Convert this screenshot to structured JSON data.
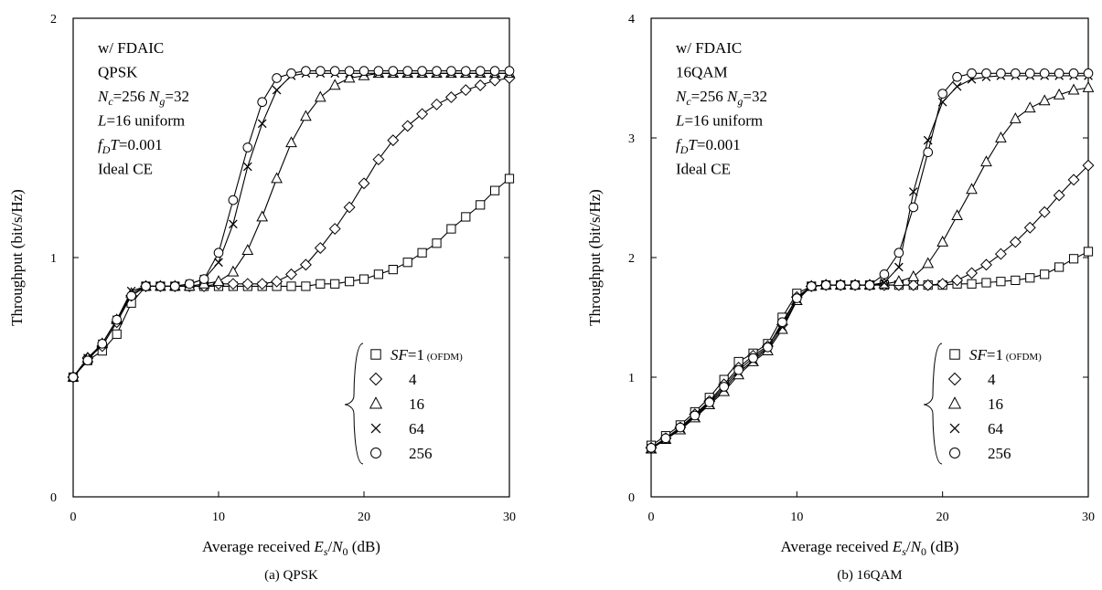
{
  "chart_data": [
    {
      "type": "line",
      "caption": "(a) QPSK",
      "xlabel_prefix": "Average received ",
      "xlabel_var": "E",
      "xlabel_var_sub": "s",
      "xlabel_slash": "/",
      "xlabel_var2": "N",
      "xlabel_var2_sub": "0",
      "xlabel_unit": " (dB)",
      "ylabel": "Throughput (bit/s/Hz)",
      "xlim": [
        0,
        30
      ],
      "ylim": [
        0,
        2
      ],
      "xticks": [
        "0",
        "10",
        "20",
        "30"
      ],
      "yticks": [
        "0",
        "1",
        "2"
      ],
      "annotations": [
        {
          "pre": "w/ FDAIC",
          "it": "",
          "sub": "",
          "post": ""
        },
        {
          "pre": "QPSK",
          "it": "",
          "sub": "",
          "post": ""
        },
        {
          "pre": "",
          "it": "N",
          "sub": "c",
          "post": "=256 ",
          "it2": "N",
          "sub2": "g",
          "post2": "=32"
        },
        {
          "pre": "",
          "it": "L",
          "sub": "",
          "post": "=16 uniform"
        },
        {
          "pre": "",
          "it": "f",
          "sub": "D",
          "post": "",
          "it2": "T",
          "sub2": "",
          "post2": "=0.001"
        },
        {
          "pre": "Ideal CE",
          "it": "",
          "sub": "",
          "post": ""
        }
      ],
      "series": [
        {
          "name": "SF=1 (OFDM)",
          "marker": "square",
          "x": [
            0,
            1,
            2,
            3,
            4,
            5,
            6,
            7,
            8,
            9,
            10,
            11,
            12,
            13,
            14,
            15,
            16,
            17,
            18,
            19,
            20,
            21,
            22,
            23,
            24,
            25,
            26,
            27,
            28,
            29,
            30
          ],
          "y": [
            0.5,
            0.57,
            0.61,
            0.68,
            0.81,
            0.88,
            0.88,
            0.88,
            0.88,
            0.88,
            0.88,
            0.88,
            0.88,
            0.88,
            0.88,
            0.88,
            0.88,
            0.89,
            0.89,
            0.9,
            0.91,
            0.93,
            0.95,
            0.98,
            1.02,
            1.06,
            1.12,
            1.17,
            1.22,
            1.28,
            1.33
          ]
        },
        {
          "name": "4",
          "marker": "diamond",
          "x": [
            0,
            1,
            2,
            3,
            4,
            5,
            6,
            7,
            8,
            9,
            10,
            11,
            12,
            13,
            14,
            15,
            16,
            17,
            18,
            19,
            20,
            21,
            22,
            23,
            24,
            25,
            26,
            27,
            28,
            29,
            30
          ],
          "y": [
            0.5,
            0.58,
            0.63,
            0.73,
            0.84,
            0.88,
            0.88,
            0.88,
            0.88,
            0.88,
            0.89,
            0.89,
            0.89,
            0.89,
            0.9,
            0.93,
            0.97,
            1.04,
            1.12,
            1.21,
            1.31,
            1.41,
            1.49,
            1.55,
            1.6,
            1.64,
            1.67,
            1.7,
            1.72,
            1.74,
            1.75
          ]
        },
        {
          "name": "16",
          "marker": "triangle",
          "x": [
            0,
            1,
            2,
            3,
            4,
            5,
            6,
            7,
            8,
            9,
            10,
            11,
            12,
            13,
            14,
            15,
            16,
            17,
            18,
            19,
            20,
            21,
            22,
            23,
            24,
            25,
            26,
            27,
            28,
            29,
            30
          ],
          "y": [
            0.5,
            0.58,
            0.64,
            0.74,
            0.85,
            0.88,
            0.88,
            0.88,
            0.88,
            0.89,
            0.9,
            0.94,
            1.03,
            1.17,
            1.33,
            1.48,
            1.59,
            1.67,
            1.72,
            1.75,
            1.76,
            1.77,
            1.77,
            1.77,
            1.77,
            1.77,
            1.77,
            1.77,
            1.77,
            1.77,
            1.77
          ]
        },
        {
          "name": "64",
          "marker": "cross",
          "x": [
            0,
            1,
            2,
            3,
            4,
            5,
            6,
            7,
            8,
            9,
            10,
            11,
            12,
            13,
            14,
            15,
            16,
            17,
            18,
            19,
            20,
            21,
            22,
            23,
            24,
            25,
            26,
            27,
            28,
            29,
            30
          ],
          "y": [
            0.5,
            0.58,
            0.64,
            0.74,
            0.86,
            0.88,
            0.88,
            0.88,
            0.89,
            0.91,
            0.98,
            1.14,
            1.38,
            1.56,
            1.7,
            1.76,
            1.77,
            1.77,
            1.77,
            1.77,
            1.77,
            1.77,
            1.77,
            1.77,
            1.77,
            1.77,
            1.77,
            1.77,
            1.77,
            1.77,
            1.77
          ]
        },
        {
          "name": "256",
          "marker": "circle",
          "x": [
            0,
            1,
            2,
            3,
            4,
            5,
            6,
            7,
            8,
            9,
            10,
            11,
            12,
            13,
            14,
            15,
            16,
            17,
            18,
            19,
            20,
            21,
            22,
            23,
            24,
            25,
            26,
            27,
            28,
            29,
            30
          ],
          "y": [
            0.5,
            0.57,
            0.64,
            0.74,
            0.84,
            0.88,
            0.88,
            0.88,
            0.89,
            0.91,
            1.02,
            1.24,
            1.46,
            1.65,
            1.75,
            1.77,
            1.78,
            1.78,
            1.78,
            1.78,
            1.78,
            1.78,
            1.78,
            1.78,
            1.78,
            1.78,
            1.78,
            1.78,
            1.78,
            1.78,
            1.78
          ]
        }
      ],
      "legend": {
        "position": "bottom-right",
        "sf_label": "SF",
        "sf_value": "=1",
        "ofdm": "(OFDM)",
        "others": [
          "4",
          "16",
          "64",
          "256"
        ]
      }
    },
    {
      "type": "line",
      "caption": "(b) 16QAM",
      "xlabel_prefix": "Average received ",
      "xlabel_var": "E",
      "xlabel_var_sub": "s",
      "xlabel_slash": "/",
      "xlabel_var2": "N",
      "xlabel_var2_sub": "0",
      "xlabel_unit": " (dB)",
      "ylabel": "Throughput (bit/s/Hz)",
      "xlim": [
        0,
        30
      ],
      "ylim": [
        0,
        4
      ],
      "xticks": [
        "0",
        "10",
        "20",
        "30"
      ],
      "yticks": [
        "0",
        "1",
        "2",
        "3",
        "4"
      ],
      "annotations": [
        {
          "pre": "w/ FDAIC",
          "it": "",
          "sub": "",
          "post": ""
        },
        {
          "pre": "16QAM",
          "it": "",
          "sub": "",
          "post": ""
        },
        {
          "pre": "",
          "it": "N",
          "sub": "c",
          "post": "=256 ",
          "it2": "N",
          "sub2": "g",
          "post2": "=32"
        },
        {
          "pre": "",
          "it": "L",
          "sub": "",
          "post": "=16 uniform"
        },
        {
          "pre": "",
          "it": "f",
          "sub": "D",
          "post": "",
          "it2": "T",
          "sub2": "",
          "post2": "=0.001"
        },
        {
          "pre": "Ideal CE",
          "it": "",
          "sub": "",
          "post": ""
        }
      ],
      "series": [
        {
          "name": "SF=1 (OFDM)",
          "marker": "square",
          "x": [
            0,
            1,
            2,
            3,
            4,
            5,
            6,
            7,
            8,
            9,
            10,
            11,
            12,
            13,
            14,
            15,
            16,
            17,
            18,
            19,
            20,
            21,
            22,
            23,
            24,
            25,
            26,
            27,
            28,
            29,
            30
          ],
          "y": [
            0.43,
            0.51,
            0.6,
            0.71,
            0.83,
            0.98,
            1.13,
            1.2,
            1.28,
            1.5,
            1.7,
            1.76,
            1.77,
            1.77,
            1.77,
            1.77,
            1.77,
            1.77,
            1.77,
            1.77,
            1.77,
            1.78,
            1.78,
            1.79,
            1.8,
            1.81,
            1.83,
            1.86,
            1.92,
            1.99,
            2.05
          ]
        },
        {
          "name": "4",
          "marker": "diamond",
          "x": [
            0,
            1,
            2,
            3,
            4,
            5,
            6,
            7,
            8,
            9,
            10,
            11,
            12,
            13,
            14,
            15,
            16,
            17,
            18,
            19,
            20,
            21,
            22,
            23,
            24,
            25,
            26,
            27,
            28,
            29,
            30
          ],
          "y": [
            0.41,
            0.49,
            0.58,
            0.69,
            0.8,
            0.94,
            1.08,
            1.18,
            1.26,
            1.44,
            1.67,
            1.76,
            1.77,
            1.77,
            1.77,
            1.77,
            1.77,
            1.77,
            1.77,
            1.77,
            1.78,
            1.81,
            1.87,
            1.94,
            2.03,
            2.13,
            2.25,
            2.38,
            2.52,
            2.65,
            2.77
          ]
        },
        {
          "name": "16",
          "marker": "triangle",
          "x": [
            0,
            1,
            2,
            3,
            4,
            5,
            6,
            7,
            8,
            9,
            10,
            11,
            12,
            13,
            14,
            15,
            16,
            17,
            18,
            19,
            20,
            21,
            22,
            23,
            24,
            25,
            26,
            27,
            28,
            29,
            30
          ],
          "y": [
            0.4,
            0.48,
            0.56,
            0.66,
            0.77,
            0.88,
            1.02,
            1.13,
            1.22,
            1.4,
            1.64,
            1.76,
            1.77,
            1.77,
            1.77,
            1.77,
            1.78,
            1.8,
            1.84,
            1.95,
            2.13,
            2.35,
            2.57,
            2.8,
            3.0,
            3.16,
            3.25,
            3.31,
            3.36,
            3.4,
            3.42
          ]
        },
        {
          "name": "64",
          "marker": "cross",
          "x": [
            0,
            1,
            2,
            3,
            4,
            5,
            6,
            7,
            8,
            9,
            10,
            11,
            12,
            13,
            14,
            15,
            16,
            17,
            18,
            19,
            20,
            21,
            22,
            23,
            24,
            25,
            26,
            27,
            28,
            29,
            30
          ],
          "y": [
            0.4,
            0.48,
            0.57,
            0.67,
            0.78,
            0.9,
            1.04,
            1.14,
            1.24,
            1.42,
            1.65,
            1.76,
            1.77,
            1.77,
            1.77,
            1.77,
            1.79,
            1.92,
            2.55,
            2.98,
            3.3,
            3.43,
            3.49,
            3.51,
            3.52,
            3.52,
            3.52,
            3.52,
            3.52,
            3.52,
            3.52
          ]
        },
        {
          "name": "256",
          "marker": "circle",
          "x": [
            0,
            1,
            2,
            3,
            4,
            5,
            6,
            7,
            8,
            9,
            10,
            11,
            12,
            13,
            14,
            15,
            16,
            17,
            18,
            19,
            20,
            21,
            22,
            23,
            24,
            25,
            26,
            27,
            28,
            29,
            30
          ],
          "y": [
            0.41,
            0.49,
            0.58,
            0.68,
            0.79,
            0.92,
            1.06,
            1.16,
            1.25,
            1.46,
            1.66,
            1.76,
            1.77,
            1.77,
            1.77,
            1.77,
            1.86,
            2.04,
            2.42,
            2.88,
            3.37,
            3.51,
            3.54,
            3.54,
            3.54,
            3.54,
            3.54,
            3.54,
            3.54,
            3.54,
            3.54
          ]
        }
      ],
      "legend": {
        "position": "bottom-right",
        "sf_label": "SF",
        "sf_value": "=1",
        "ofdm": "(OFDM)",
        "others": [
          "4",
          "16",
          "64",
          "256"
        ]
      }
    }
  ]
}
